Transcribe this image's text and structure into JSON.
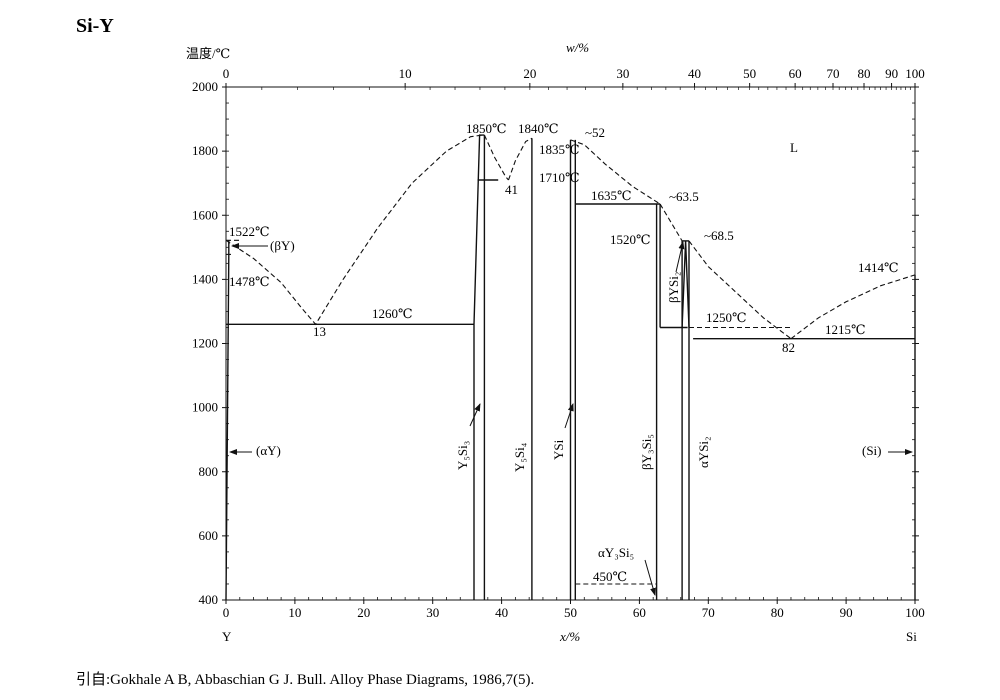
{
  "chart_data": {
    "type": "phase-diagram",
    "title": "Si-Y",
    "ylabel": "温度/℃",
    "xlabel": "x/%",
    "x2label": "w/%",
    "ylim": [
      400,
      2000
    ],
    "xlim": [
      0,
      100
    ],
    "yticks": [
      400,
      600,
      800,
      1000,
      1200,
      1400,
      1600,
      1800,
      2000
    ],
    "xticks": [
      0,
      10,
      20,
      30,
      40,
      50,
      60,
      70,
      80,
      90,
      100
    ],
    "xticks_top": [
      {
        "wt": 0,
        "at": 0,
        "label": "0"
      },
      {
        "wt": 10,
        "at": 26.0,
        "label": "10"
      },
      {
        "wt": 20,
        "at": 44.1,
        "label": "20"
      },
      {
        "wt": 30,
        "at": 57.6,
        "label": "30"
      },
      {
        "wt": 40,
        "at": 68.0,
        "label": "40"
      },
      {
        "wt": 50,
        "at": 76.0,
        "label": "50"
      },
      {
        "wt": 60,
        "at": 82.6,
        "label": "60"
      },
      {
        "wt": 70,
        "at": 88.1,
        "label": "70"
      },
      {
        "wt": 80,
        "at": 92.6,
        "label": "80"
      },
      {
        "wt": 90,
        "at": 96.6,
        "label": "90"
      },
      {
        "wt": 100,
        "at": 100,
        "label": "100"
      }
    ],
    "left_element": "Y",
    "right_element": "Si",
    "solid_lines": [
      {
        "x": [
          0,
          36
        ],
        "y": [
          1260,
          1260
        ]
      },
      {
        "x": [
          36.5,
          39.5
        ],
        "y": [
          1710,
          1710
        ]
      },
      {
        "x": [
          50.7,
          63
        ],
        "y": [
          1635,
          1635
        ]
      },
      {
        "x": [
          63,
          67
        ],
        "y": [
          1250,
          1250
        ]
      },
      {
        "x": [
          66.2,
          67.2
        ],
        "y": [
          1520,
          1520
        ]
      },
      {
        "x": [
          67.8,
          100
        ],
        "y": [
          1215,
          1215
        ]
      },
      {
        "x": [
          36,
          36
        ],
        "y": [
          400,
          1260
        ]
      },
      {
        "x": [
          37.5,
          37.5
        ],
        "y": [
          400,
          1850
        ]
      },
      {
        "x": [
          36,
          36.8,
          37.5
        ],
        "y": [
          1260,
          1850,
          1850
        ]
      },
      {
        "x": [
          44.4,
          44.4
        ],
        "y": [
          400,
          1840
        ]
      },
      {
        "x": [
          50,
          50
        ],
        "y": [
          400,
          1835
        ]
      },
      {
        "x": [
          50.7,
          50.7
        ],
        "y": [
          400,
          1835
        ]
      },
      {
        "x": [
          62.5,
          62.5
        ],
        "y": [
          400,
          1635
        ]
      },
      {
        "x": [
          63,
          63
        ],
        "y": [
          1250,
          1635
        ]
      },
      {
        "x": [
          66.2,
          66.2
        ],
        "y": [
          400,
          1520
        ]
      },
      {
        "x": [
          67.2,
          67.2
        ],
        "y": [
          400,
          1520
        ]
      },
      {
        "x": [
          66.2,
          66.7,
          67.2
        ],
        "y": [
          1250,
          1520,
          1250
        ]
      },
      {
        "x": [
          0,
          0.4,
          0.4
        ],
        "y": [
          400,
          1478,
          1522
        ]
      },
      {
        "x": [
          100,
          100
        ],
        "y": [
          400,
          1414
        ]
      }
    ],
    "dashed_lines": [
      {
        "x": [
          0,
          4,
          8,
          11,
          13,
          17,
          22,
          27,
          32,
          35.5,
          37.2
        ],
        "y": [
          1522,
          1465,
          1390,
          1310,
          1260,
          1400,
          1560,
          1700,
          1800,
          1845,
          1850
        ]
      },
      {
        "x": [
          37.5,
          39,
          40.6,
          41
        ],
        "y": [
          1850,
          1780,
          1720,
          1710
        ]
      },
      {
        "x": [
          41,
          42,
          43.5,
          44.4
        ],
        "y": [
          1710,
          1770,
          1830,
          1840
        ]
      },
      {
        "x": [
          50,
          52,
          55,
          59,
          63
        ],
        "y": [
          1835,
          1820,
          1760,
          1690,
          1635
        ]
      },
      {
        "x": [
          63,
          66.2
        ],
        "y": [
          1635,
          1520
        ]
      },
      {
        "x": [
          67.2,
          70,
          74,
          78,
          82
        ],
        "y": [
          1520,
          1440,
          1360,
          1280,
          1215
        ]
      },
      {
        "x": [
          82,
          86,
          90,
          95,
          100
        ],
        "y": [
          1215,
          1280,
          1330,
          1380,
          1414
        ]
      },
      {
        "x": [
          0,
          1
        ],
        "y": [
          1478,
          1478
        ]
      },
      {
        "x": [
          0,
          2
        ],
        "y": [
          1522,
          1522
        ]
      },
      {
        "x": [
          67.2,
          82
        ],
        "y": [
          1250,
          1250
        ]
      },
      {
        "x": [
          50.7,
          62.5
        ],
        "y": [
          450,
          450
        ]
      }
    ],
    "temperature_labels": [
      "1850℃",
      "1840℃",
      "1835℃",
      "1710℃",
      "1635℃",
      "1520℃",
      "1522℃",
      "1478℃",
      "1414℃",
      "1260℃",
      "1250℃",
      "1215℃",
      "450℃"
    ],
    "composition_labels": [
      "13",
      "41",
      "82",
      "~52",
      "~63.5",
      "~68.5"
    ],
    "phase_labels": {
      "liquid": "L",
      "beta_Y": "(βY)",
      "alpha_Y": "(αY)",
      "Si": "(Si)",
      "Y5Si3": "Y₅Si₃",
      "Y5Si4": "Y₅Si₄",
      "YSi": "YSi",
      "beta_Y3Si5": "βY₃Si₅",
      "alpha_Y3Si5": "αY₃Si₅",
      "beta_YSi2": "βYSi₂",
      "alpha_YSi2": "αYSi₂"
    }
  },
  "source_note": "引自:Gokhale A B, Abbaschian G J. Bull. Alloy Phase Diagrams, 1986,7(5)."
}
